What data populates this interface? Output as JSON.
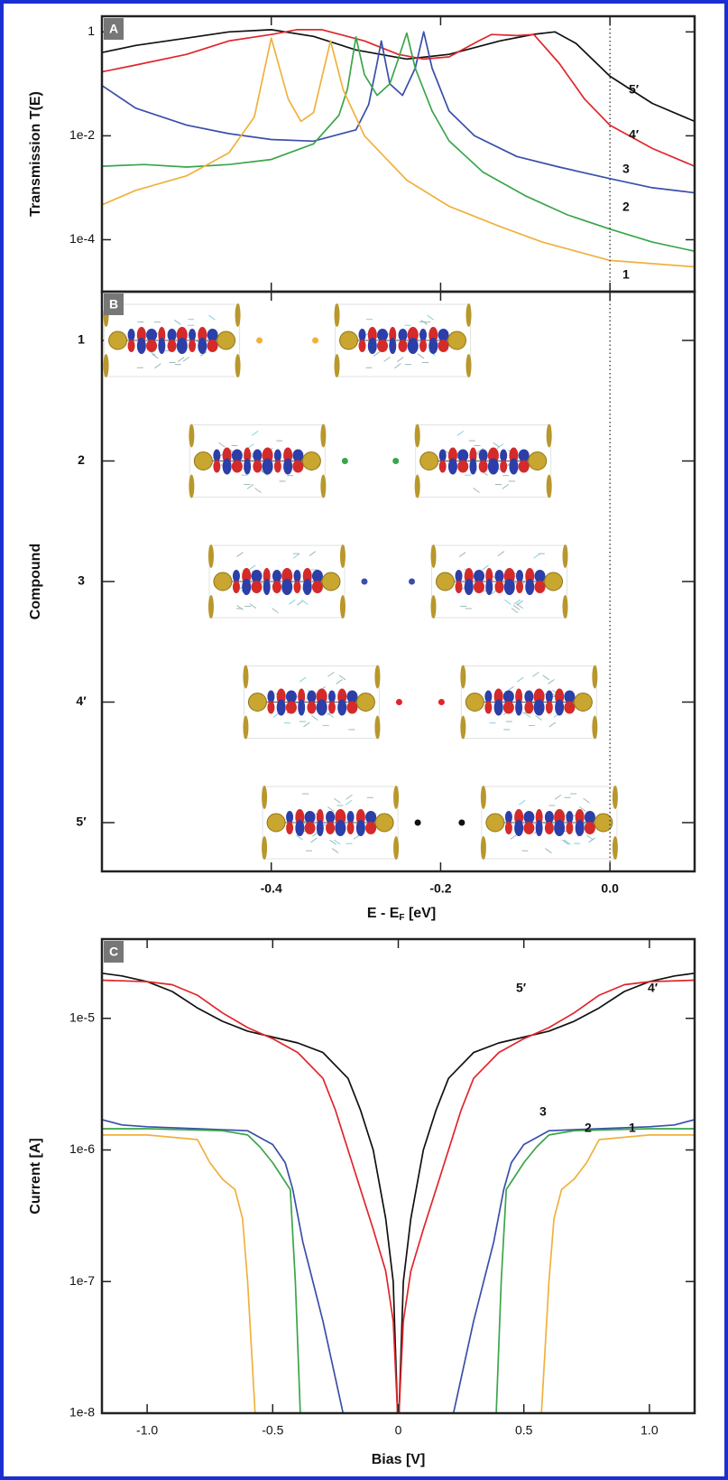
{
  "chart_data": [
    {
      "panel": "A",
      "type": "line",
      "yscale": "log",
      "ylabel": "Transmission T(E)",
      "xlim": [
        -0.6,
        0.1
      ],
      "ylim": [
        1e-05,
        2
      ],
      "yticks": [
        1,
        {
          "value": 0.01,
          "label": "1e-2"
        },
        {
          "value": 0.0001,
          "label": "1e-4"
        }
      ],
      "reference_line_x": 0,
      "series": [
        {
          "name": "5′",
          "color": "#111111",
          "x": [
            -0.6,
            -0.56,
            -0.5,
            -0.45,
            -0.4,
            -0.35,
            -0.3,
            -0.24,
            -0.19,
            -0.13,
            -0.09,
            -0.065,
            -0.04,
            0,
            0.05,
            0.1
          ],
          "values": [
            0.4,
            0.55,
            0.76,
            1,
            1.1,
            0.82,
            0.45,
            0.3,
            0.37,
            0.67,
            0.9,
            1,
            0.6,
            0.14,
            0.042,
            0.019
          ]
        },
        {
          "name": "4′",
          "color": "#e0262b",
          "x": [
            -0.6,
            -0.56,
            -0.5,
            -0.45,
            -0.4,
            -0.37,
            -0.34,
            -0.29,
            -0.25,
            -0.22,
            -0.19,
            -0.155,
            -0.14,
            -0.11,
            -0.09,
            -0.06,
            -0.03,
            0,
            0.05,
            0.1
          ],
          "values": [
            0.17,
            0.23,
            0.37,
            0.67,
            0.89,
            1.1,
            1.1,
            0.67,
            0.37,
            0.3,
            0.33,
            0.67,
            0.89,
            0.85,
            0.89,
            0.25,
            0.051,
            0.016,
            0.0057,
            0.0026
          ]
        },
        {
          "name": "3",
          "color": "#3a4fa8",
          "x": [
            -0.6,
            -0.56,
            -0.5,
            -0.45,
            -0.4,
            -0.35,
            -0.3,
            -0.285,
            -0.275,
            -0.27,
            -0.26,
            -0.245,
            -0.23,
            -0.22,
            -0.21,
            -0.19,
            -0.16,
            -0.11,
            -0.06,
            0,
            0.05,
            0.1
          ],
          "values": [
            0.093,
            0.034,
            0.016,
            0.011,
            0.0085,
            0.0079,
            0.013,
            0.04,
            0.25,
            0.67,
            0.1,
            0.06,
            0.2,
            1,
            0.2,
            0.03,
            0.01,
            0.004,
            0.0025,
            0.0015,
            0.001,
            0.0008
          ]
        },
        {
          "name": "2",
          "color": "#3aa64a",
          "x": [
            -0.6,
            -0.55,
            -0.5,
            -0.45,
            -0.4,
            -0.35,
            -0.32,
            -0.31,
            -0.3,
            -0.29,
            -0.275,
            -0.26,
            -0.25,
            -0.24,
            -0.23,
            -0.21,
            -0.19,
            -0.15,
            -0.1,
            -0.05,
            0,
            0.05,
            0.1
          ],
          "values": [
            0.0026,
            0.0028,
            0.0025,
            0.0028,
            0.0035,
            0.007,
            0.025,
            0.08,
            0.8,
            0.15,
            0.06,
            0.1,
            0.3,
            0.95,
            0.2,
            0.03,
            0.008,
            0.002,
            0.0007,
            0.0003,
            0.00016,
            9e-05,
            6e-05
          ]
        },
        {
          "name": "1",
          "color": "#f0b13c",
          "x": [
            -0.6,
            -0.56,
            -0.5,
            -0.45,
            -0.42,
            -0.4,
            -0.38,
            -0.365,
            -0.35,
            -0.33,
            -0.315,
            -0.29,
            -0.24,
            -0.19,
            -0.13,
            -0.08,
            0,
            0.1
          ],
          "values": [
            0.00047,
            0.00089,
            0.0017,
            0.0047,
            0.023,
            0.76,
            0.051,
            0.019,
            0.028,
            0.67,
            0.076,
            0.01,
            0.0014,
            0.00044,
            0.00018,
            9e-05,
            4e-05,
            3e-05
          ]
        }
      ]
    },
    {
      "panel": "B",
      "type": "dot",
      "ylabel": "Compound",
      "xlabel": {
        "text": "E - E",
        "subscript": "F",
        "suffix": " [eV]"
      },
      "xlim": [
        -0.6,
        0.1
      ],
      "xticks": [
        -0.4,
        -0.2,
        {
          "value": 0,
          "label": "0.0"
        }
      ],
      "reference_line_x": 0,
      "categories": [
        "1",
        "2",
        "3",
        "4′",
        "5′"
      ],
      "colors": [
        "#f0b13c",
        "#3aa64a",
        "#3a4fa8",
        "#e0262b",
        "#111111"
      ],
      "values": [
        [
          -0.414,
          -0.348
        ],
        [
          -0.313,
          -0.253
        ],
        [
          -0.29,
          -0.234
        ],
        [
          -0.249,
          -0.199
        ],
        [
          -0.227,
          -0.175
        ]
      ]
    },
    {
      "panel": "C",
      "type": "line",
      "yscale": "log",
      "ylabel": "Current [A]",
      "xlabel": "Bias [V]",
      "xlim": [
        -1.18,
        1.18
      ],
      "ylim": [
        1e-08,
        4e-05
      ],
      "xticks": [
        {
          "value": -1,
          "label": "-1.0"
        },
        -0.5,
        0,
        0.5,
        {
          "value": 1,
          "label": "1.0"
        }
      ],
      "yticks": [
        {
          "value": 1e-05,
          "label": "1e-5"
        },
        {
          "value": 1e-06,
          "label": "1e-6"
        },
        {
          "value": 1e-07,
          "label": "1e-7"
        },
        {
          "value": 1e-08,
          "label": "1e-8"
        }
      ],
      "series": [
        {
          "name": "5′",
          "color": "#111111",
          "x": [
            -1.18,
            -1.1,
            -1.0,
            -0.9,
            -0.8,
            -0.7,
            -0.6,
            -0.5,
            -0.4,
            -0.3,
            -0.2,
            -0.15,
            -0.1,
            -0.05,
            -0.02,
            -0.003,
            0.003,
            0.02,
            0.05,
            0.1,
            0.15,
            0.2,
            0.3,
            0.4,
            0.5,
            0.6,
            0.7,
            0.8,
            0.9,
            1.0,
            1.1,
            1.18
          ],
          "values": [
            2.2e-05,
            2.1e-05,
            1.9e-05,
            1.6e-05,
            1.2e-05,
            9.5e-06,
            8e-06,
            7.2e-06,
            6.5e-06,
            5.5e-06,
            3.5e-06,
            2e-06,
            1e-06,
            3e-07,
            1e-07,
            1e-08,
            1e-08,
            1e-07,
            3e-07,
            1e-06,
            2e-06,
            3.5e-06,
            5.5e-06,
            6.5e-06,
            7.2e-06,
            8e-06,
            9.5e-06,
            1.2e-05,
            1.6e-05,
            1.9e-05,
            2.1e-05,
            2.2e-05
          ]
        },
        {
          "name": "4′",
          "color": "#e0262b",
          "x": [
            -1.18,
            -1.0,
            -0.9,
            -0.8,
            -0.7,
            -0.6,
            -0.5,
            -0.4,
            -0.3,
            -0.25,
            -0.2,
            -0.15,
            -0.1,
            -0.05,
            -0.02,
            -0.003,
            0.003,
            0.02,
            0.05,
            0.1,
            0.15,
            0.2,
            0.25,
            0.3,
            0.4,
            0.5,
            0.6,
            0.7,
            0.8,
            0.9,
            1.0,
            1.18
          ],
          "values": [
            1.95e-05,
            1.9e-05,
            1.8e-05,
            1.5e-05,
            1.1e-05,
            8.5e-06,
            7e-06,
            5.5e-06,
            3.5e-06,
            2e-06,
            1e-06,
            5e-07,
            2.5e-07,
            1.2e-07,
            5e-08,
            1e-08,
            1e-08,
            5e-08,
            1.2e-07,
            2.5e-07,
            5e-07,
            1e-06,
            2e-06,
            3.5e-06,
            5.5e-06,
            7e-06,
            8.5e-06,
            1.1e-05,
            1.5e-05,
            1.8e-05,
            1.9e-05,
            1.95e-05
          ]
        },
        {
          "name": "3",
          "color": "#3a4fa8",
          "x": [
            -1.18,
            -1.1,
            -1.0,
            -0.8,
            -0.6,
            -0.5,
            -0.45,
            -0.42,
            -0.38,
            -0.3,
            -0.22,
            0,
            0.22,
            0.3,
            0.38,
            0.42,
            0.45,
            0.5,
            0.6,
            0.8,
            1.0,
            1.1,
            1.18
          ],
          "values": [
            1.7e-06,
            1.55e-06,
            1.5e-06,
            1.45e-06,
            1.4e-06,
            1.1e-06,
            8e-07,
            5e-07,
            2e-07,
            5e-08,
            1e-08,
            null,
            1e-08,
            5e-08,
            2e-07,
            5e-07,
            8e-07,
            1.1e-06,
            1.4e-06,
            1.45e-06,
            1.5e-06,
            1.55e-06,
            1.7e-06
          ]
        },
        {
          "name": "2",
          "color": "#3aa64a",
          "x": [
            -1.18,
            -1.0,
            -0.7,
            -0.6,
            -0.55,
            -0.5,
            -0.43,
            -0.41,
            -0.39,
            0,
            0.39,
            0.41,
            0.43,
            0.5,
            0.55,
            0.6,
            0.7,
            1.0,
            1.18
          ],
          "values": [
            1.45e-06,
            1.45e-06,
            1.4e-06,
            1.3e-06,
            1.05e-06,
            8e-07,
            5e-07,
            1e-07,
            1e-08,
            null,
            1e-08,
            1e-07,
            5e-07,
            8e-07,
            1.05e-06,
            1.3e-06,
            1.4e-06,
            1.45e-06,
            1.45e-06
          ]
        },
        {
          "name": "1",
          "color": "#f0b13c",
          "x": [
            -1.18,
            -1.0,
            -0.8,
            -0.75,
            -0.7,
            -0.65,
            -0.62,
            -0.6,
            -0.57,
            0,
            0.57,
            0.6,
            0.62,
            0.65,
            0.7,
            0.75,
            0.8,
            1.0,
            1.18
          ],
          "values": [
            1.3e-06,
            1.3e-06,
            1.2e-06,
            8e-07,
            6e-07,
            5e-07,
            3e-07,
            1e-07,
            1e-08,
            null,
            1e-08,
            1e-07,
            3e-07,
            5e-07,
            6e-07,
            8e-07,
            1.2e-06,
            1.3e-06,
            1.3e-06
          ]
        }
      ]
    }
  ]
}
